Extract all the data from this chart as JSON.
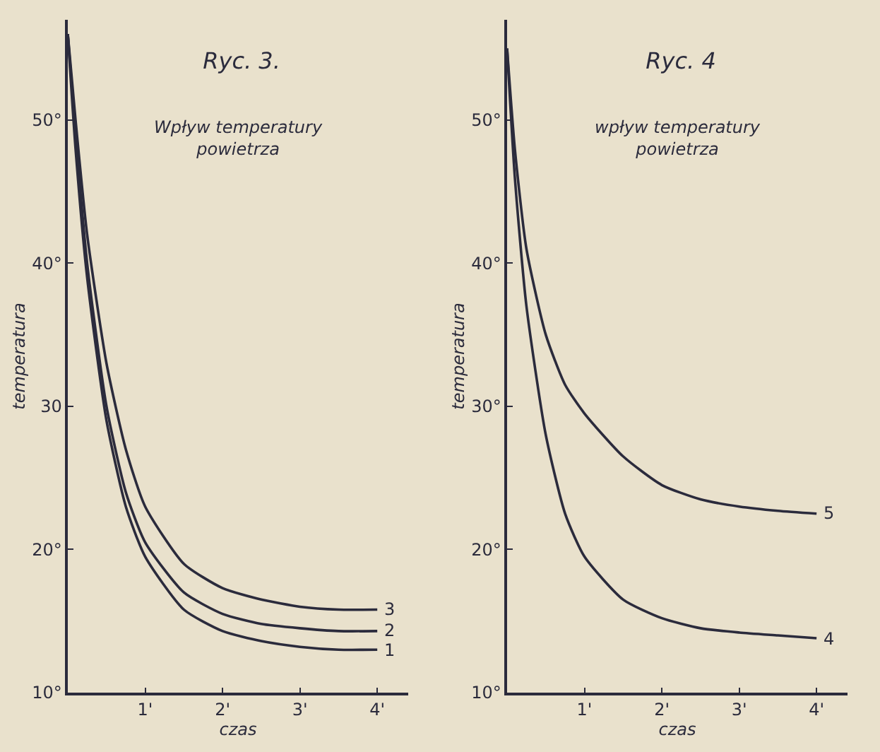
{
  "chart_data": [
    {
      "type": "line",
      "title": "Ryc. 3.",
      "subtitle": "Wpływ temperatury powietrza",
      "xlabel": "czas",
      "ylabel": "temperatura",
      "x": [
        0,
        0.1,
        0.25,
        0.5,
        0.75,
        1,
        1.5,
        2,
        2.5,
        3,
        3.5,
        4
      ],
      "series": [
        {
          "name": "3",
          "color": "#2b2b3c",
          "values": [
            56,
            50,
            42,
            33,
            27,
            23,
            19,
            17.3,
            16.5,
            16,
            15.8,
            15.8
          ]
        },
        {
          "name": "2",
          "color": "#2b2b3c",
          "values": [
            56,
            49,
            40,
            30,
            24,
            20.5,
            17,
            15.5,
            14.8,
            14.5,
            14.3,
            14.3
          ]
        },
        {
          "name": "1",
          "color": "#2b2b3c",
          "values": [
            56,
            48,
            39,
            29,
            23,
            19.5,
            15.8,
            14.3,
            13.6,
            13.2,
            13,
            13
          ]
        }
      ],
      "xlim": [
        0,
        4.4
      ],
      "ylim": [
        10,
        57
      ],
      "xticks": [
        {
          "value": 1,
          "label": "1'"
        },
        {
          "value": 2,
          "label": "2'"
        },
        {
          "value": 3,
          "label": "3'"
        },
        {
          "value": 4,
          "label": "4'"
        }
      ],
      "yticks": [
        {
          "value": 10,
          "label": "10°"
        },
        {
          "value": 20,
          "label": "20°"
        },
        30,
        {
          "value": 40,
          "label": "40°"
        },
        {
          "value": 50,
          "label": "50°"
        }
      ],
      "grid": false,
      "legend": false,
      "marker": "none",
      "line_style": "solid"
    },
    {
      "type": "line",
      "title": "Ryc. 4",
      "subtitle": "wpływ temperatury powietrza",
      "xlabel": "czas",
      "ylabel": "temperatura",
      "x": [
        0,
        0.1,
        0.25,
        0.5,
        0.75,
        1,
        1.5,
        2,
        2.5,
        3,
        3.5,
        4
      ],
      "series": [
        {
          "name": "5",
          "color": "#2b2b3c",
          "values": [
            55,
            48,
            41,
            35,
            31.5,
            29.5,
            26.5,
            24.5,
            23.5,
            23,
            22.7,
            22.5
          ]
        },
        {
          "name": "4",
          "color": "#2b2b3c",
          "values": [
            55,
            46,
            37,
            28,
            22.5,
            19.5,
            16.5,
            15.2,
            14.5,
            14.2,
            14,
            13.8
          ]
        }
      ],
      "xlim": [
        0,
        4.4
      ],
      "ylim": [
        10,
        57
      ],
      "xticks": [
        {
          "value": 1,
          "label": "1'"
        },
        {
          "value": 2,
          "label": "2'"
        },
        {
          "value": 3,
          "label": "3'"
        },
        {
          "value": 4,
          "label": "4'"
        }
      ],
      "yticks": [
        {
          "value": 10,
          "label": "10°"
        },
        {
          "value": 20,
          "label": "20°"
        },
        {
          "value": 30,
          "label": "30°"
        },
        {
          "value": 40,
          "label": "40°"
        },
        {
          "value": 50,
          "label": "50°"
        }
      ],
      "grid": false,
      "legend": false,
      "marker": "none",
      "line_style": "solid"
    }
  ]
}
